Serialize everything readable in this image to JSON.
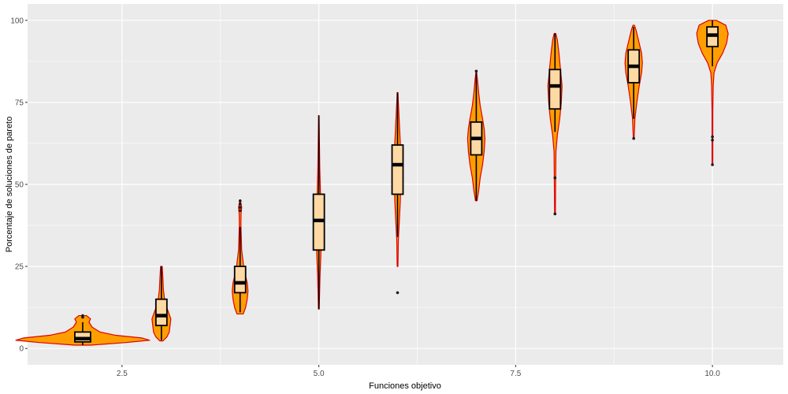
{
  "chart_data": {
    "type": "violin",
    "title": "",
    "xlabel": "Funciones objetivo",
    "ylabel": "Porcentaje de soluciones de pareto",
    "xlim": [
      1.3,
      10.9
    ],
    "ylim": [
      -5,
      105
    ],
    "x_ticks": [
      {
        "value": 2.5,
        "label": "2.5"
      },
      {
        "value": 5.0,
        "label": "5.0"
      },
      {
        "value": 7.5,
        "label": "7.5"
      },
      {
        "value": 10.0,
        "label": "10.0"
      }
    ],
    "y_ticks": [
      {
        "value": 0,
        "label": "0"
      },
      {
        "value": 25,
        "label": "25"
      },
      {
        "value": 50,
        "label": "50"
      },
      {
        "value": 75,
        "label": "75"
      },
      {
        "value": 100,
        "label": "100"
      }
    ],
    "grid": true,
    "colors": {
      "panel": "#ebebeb",
      "grid_major": "#ffffff",
      "violin_fill": "#ff9e00",
      "violin_outline": "#e00000",
      "box_fill": "#ffd9a3",
      "box_outline": "#000000",
      "outlier": "#1a1a1a"
    },
    "groups": [
      {
        "x": 2,
        "whisker_low": 1,
        "q1": 2,
        "median": 3,
        "q3": 5,
        "whisker_high": 8,
        "outliers": [
          9.5,
          10
        ],
        "box_half_width": 0.1,
        "violin": [
          [
            1,
            0.1
          ],
          [
            1.8,
            0.55
          ],
          [
            2.5,
            0.85
          ],
          [
            3.2,
            0.75
          ],
          [
            4,
            0.42
          ],
          [
            5,
            0.22
          ],
          [
            6.5,
            0.12
          ],
          [
            8,
            0.08
          ],
          [
            9,
            0.1
          ],
          [
            10,
            0.05
          ]
        ]
      },
      {
        "x": 3,
        "whisker_low": 2.5,
        "q1": 7,
        "median": 10,
        "q3": 15,
        "whisker_high": 25,
        "outliers": [],
        "box_half_width": 0.07,
        "violin": [
          [
            2.3,
            0.02
          ],
          [
            3.5,
            0.07
          ],
          [
            5,
            0.1
          ],
          [
            7,
            0.11
          ],
          [
            9,
            0.12
          ],
          [
            11,
            0.09
          ],
          [
            13,
            0.06
          ],
          [
            15,
            0.04
          ],
          [
            18,
            0.025
          ],
          [
            21,
            0.02
          ],
          [
            23,
            0.015
          ],
          [
            25,
            0.01
          ]
        ]
      },
      {
        "x": 4,
        "whisker_low": 11,
        "q1": 17,
        "median": 20,
        "q3": 25,
        "whisker_high": 37,
        "outliers": [
          42,
          43,
          44,
          45
        ],
        "box_half_width": 0.07,
        "violin": [
          [
            10.5,
            0.04
          ],
          [
            12.5,
            0.07
          ],
          [
            15,
            0.09
          ],
          [
            17.5,
            0.1
          ],
          [
            20,
            0.09
          ],
          [
            23,
            0.06
          ],
          [
            26,
            0.04
          ],
          [
            30,
            0.02
          ],
          [
            34,
            0.015
          ],
          [
            38,
            0.01
          ],
          [
            41,
            0.012
          ],
          [
            43,
            0.02
          ],
          [
            45,
            0.005
          ]
        ]
      },
      {
        "x": 5,
        "whisker_low": 12,
        "q1": 30,
        "median": 39,
        "q3": 47,
        "whisker_high": 71,
        "outliers": [],
        "box_half_width": 0.07,
        "violin": [
          [
            12,
            0.005
          ],
          [
            17,
            0.01
          ],
          [
            22,
            0.015
          ],
          [
            28,
            0.025
          ],
          [
            33,
            0.03
          ],
          [
            38,
            0.035
          ],
          [
            43,
            0.03
          ],
          [
            48,
            0.02
          ],
          [
            55,
            0.012
          ],
          [
            62,
            0.008
          ],
          [
            68,
            0.005
          ],
          [
            71,
            0.003
          ]
        ]
      },
      {
        "x": 6,
        "whisker_low": 34,
        "q1": 47,
        "median": 56,
        "q3": 62,
        "whisker_high": 78,
        "outliers": [
          17
        ],
        "box_half_width": 0.07,
        "violin": [
          [
            25,
            0.005
          ],
          [
            33,
            0.01
          ],
          [
            40,
            0.025
          ],
          [
            45,
            0.035
          ],
          [
            50,
            0.04
          ],
          [
            56,
            0.045
          ],
          [
            60,
            0.04
          ],
          [
            65,
            0.03
          ],
          [
            70,
            0.02
          ],
          [
            75,
            0.01
          ],
          [
            78,
            0.005
          ]
        ]
      },
      {
        "x": 7,
        "whisker_low": 45,
        "q1": 59,
        "median": 64,
        "q3": 69,
        "whisker_high": 84,
        "outliers": [
          84.5
        ],
        "box_half_width": 0.07,
        "violin": [
          [
            45,
            0.01
          ],
          [
            48,
            0.03
          ],
          [
            52,
            0.05
          ],
          [
            56,
            0.08
          ],
          [
            60,
            0.1
          ],
          [
            64,
            0.11
          ],
          [
            67,
            0.1
          ],
          [
            70,
            0.08
          ],
          [
            74,
            0.05
          ],
          [
            78,
            0.03
          ],
          [
            82,
            0.015
          ],
          [
            84,
            0.005
          ]
        ]
      },
      {
        "x": 8,
        "whisker_low": 66,
        "q1": 73,
        "median": 80,
        "q3": 85,
        "whisker_high": 96,
        "outliers": [
          52,
          41
        ],
        "box_half_width": 0.07,
        "violin": [
          [
            41,
            0.005
          ],
          [
            50,
            0.008
          ],
          [
            60,
            0.012
          ],
          [
            65,
            0.03
          ],
          [
            70,
            0.06
          ],
          [
            75,
            0.08
          ],
          [
            80,
            0.09
          ],
          [
            85,
            0.07
          ],
          [
            90,
            0.05
          ],
          [
            94,
            0.03
          ],
          [
            96,
            0.01
          ]
        ]
      },
      {
        "x": 9,
        "whisker_low": 70,
        "q1": 81,
        "median": 86,
        "q3": 91,
        "whisker_high": 98,
        "outliers": [
          64
        ],
        "box_half_width": 0.07,
        "violin": [
          [
            64,
            0.005
          ],
          [
            70,
            0.015
          ],
          [
            75,
            0.04
          ],
          [
            80,
            0.07
          ],
          [
            84,
            0.1
          ],
          [
            87,
            0.11
          ],
          [
            90,
            0.1
          ],
          [
            94,
            0.06
          ],
          [
            97,
            0.03
          ],
          [
            98.5,
            0.01
          ]
        ]
      },
      {
        "x": 10,
        "whisker_low": 86,
        "q1": 92,
        "median": 95.5,
        "q3": 98,
        "whisker_high": 100,
        "outliers": [
          56,
          63.5,
          64.5
        ],
        "box_half_width": 0.07,
        "violin": [
          [
            56,
            0.005
          ],
          [
            64,
            0.005
          ],
          [
            72,
            0.005
          ],
          [
            80,
            0.01
          ],
          [
            84,
            0.02
          ],
          [
            87,
            0.06
          ],
          [
            90,
            0.13
          ],
          [
            93,
            0.18
          ],
          [
            96,
            0.2
          ],
          [
            98.5,
            0.17
          ],
          [
            100,
            0.05
          ]
        ]
      }
    ]
  }
}
